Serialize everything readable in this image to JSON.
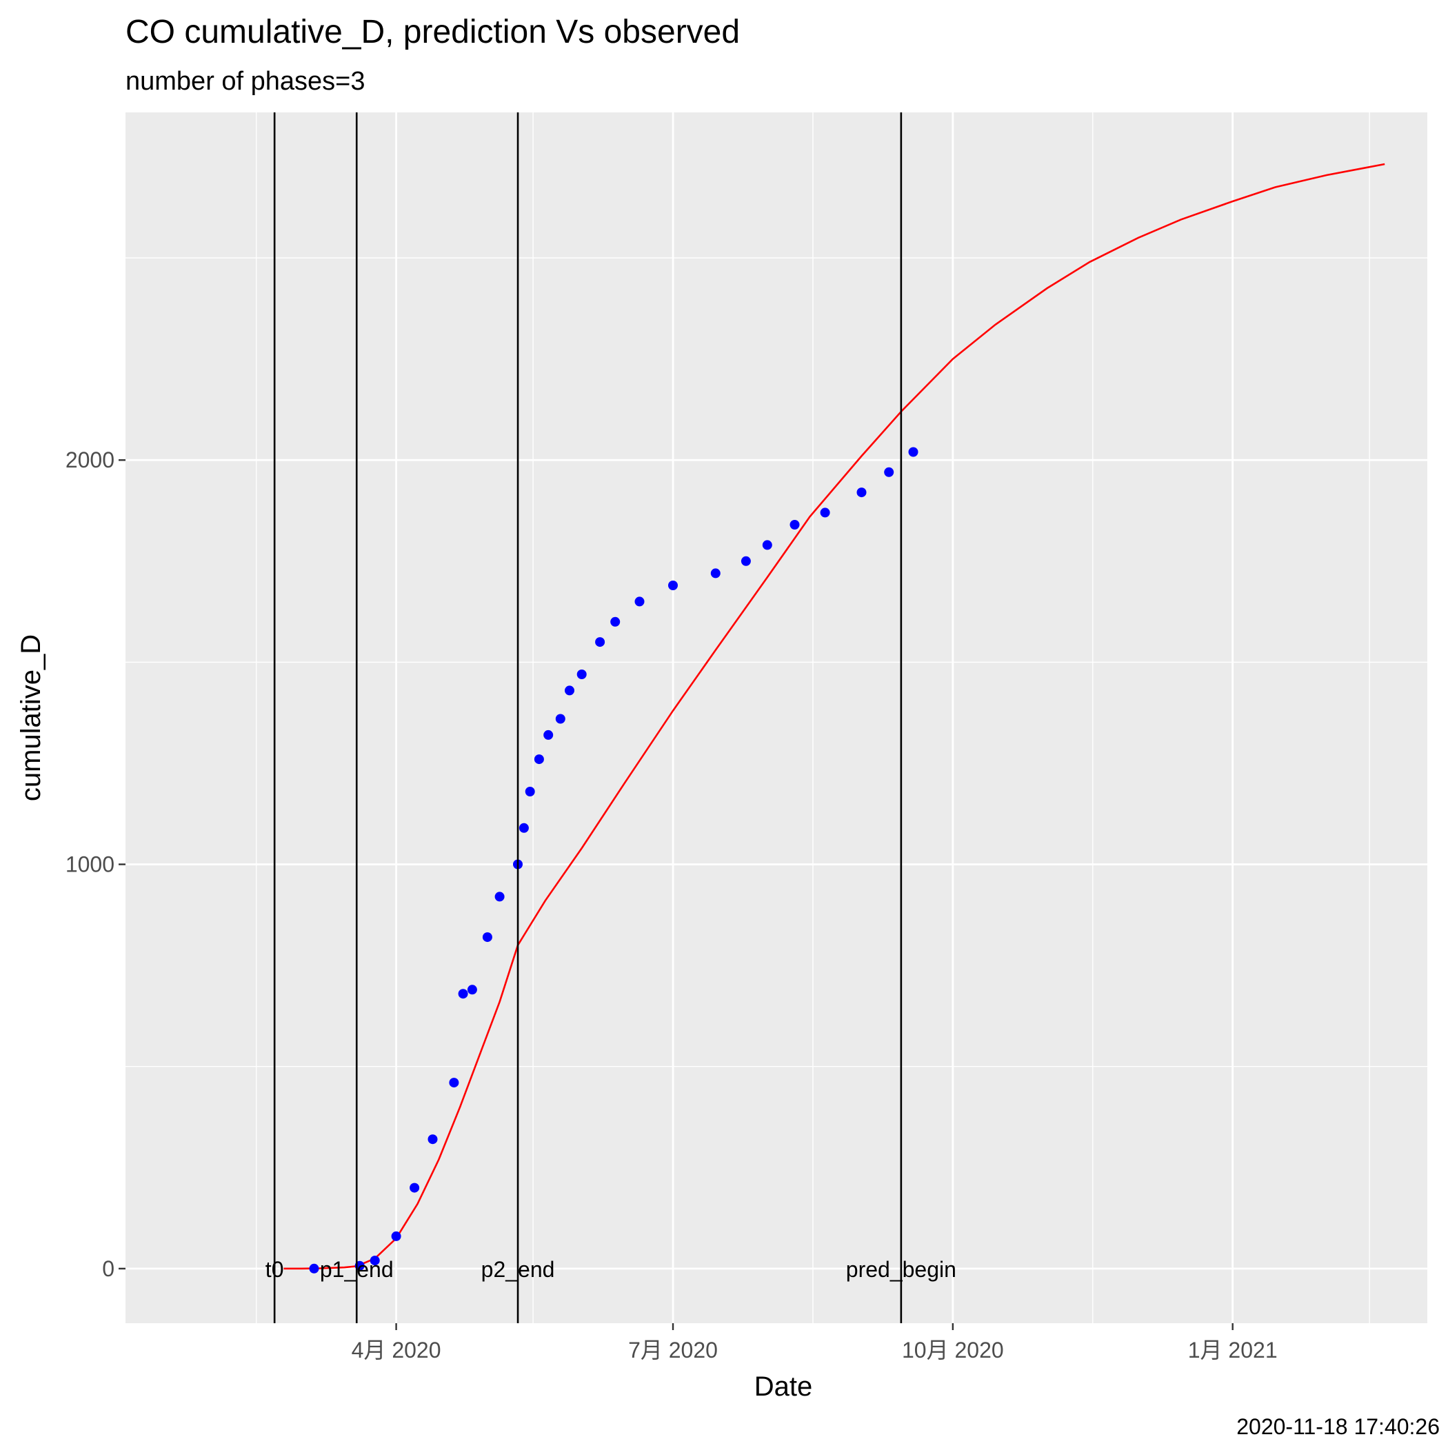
{
  "chart_data": {
    "type": "line",
    "title": "CO cumulative_D,  prediction Vs observed",
    "subtitle": "number of phases=3",
    "xlabel": "Date",
    "ylabel": "cumulative_D",
    "caption": "2020-11-18 17:40:26",
    "xlim": [
      "2020-01-03",
      "2021-03-06"
    ],
    "ylim": [
      -135,
      2860
    ],
    "grid": true,
    "x_ticks": [
      {
        "date": "2020-04-01",
        "label": "4月 2020"
      },
      {
        "date": "2020-07-01",
        "label": "7月 2020"
      },
      {
        "date": "2020-10-01",
        "label": "10月 2020"
      },
      {
        "date": "2021-01-01",
        "label": "1月 2021"
      }
    ],
    "x_minor_ticks": [
      "2020-02-15",
      "2020-05-16",
      "2020-08-16",
      "2020-11-16",
      "2021-02-15"
    ],
    "y_ticks": [
      0,
      1000,
      2000
    ],
    "y_minor_ticks": [
      500,
      1500,
      2500
    ],
    "vlines": [
      {
        "date": "2020-02-21",
        "label": "t0"
      },
      {
        "date": "2020-03-19",
        "label": "p1_end"
      },
      {
        "date": "2020-05-11",
        "label": "p2_end"
      },
      {
        "date": "2020-09-14",
        "label": "pred_begin"
      }
    ],
    "series": [
      {
        "kind": "prediction-line",
        "color": "#ff0000",
        "points": [
          [
            "2020-02-24",
            0
          ],
          [
            "2020-03-01",
            0
          ],
          [
            "2020-03-08",
            1
          ],
          [
            "2020-03-15",
            3
          ],
          [
            "2020-03-19",
            6
          ],
          [
            "2020-03-25",
            25
          ],
          [
            "2020-04-01",
            75
          ],
          [
            "2020-04-08",
            160
          ],
          [
            "2020-04-15",
            270
          ],
          [
            "2020-04-22",
            400
          ],
          [
            "2020-04-29",
            540
          ],
          [
            "2020-05-05",
            660
          ],
          [
            "2020-05-11",
            800
          ],
          [
            "2020-05-20",
            910
          ],
          [
            "2020-06-01",
            1040
          ],
          [
            "2020-06-15",
            1200
          ],
          [
            "2020-07-01",
            1380
          ],
          [
            "2020-07-15",
            1530
          ],
          [
            "2020-08-01",
            1710
          ],
          [
            "2020-08-15",
            1860
          ],
          [
            "2020-09-01",
            2010
          ],
          [
            "2020-09-14",
            2120
          ],
          [
            "2020-10-01",
            2250
          ],
          [
            "2020-10-15",
            2335
          ],
          [
            "2020-11-01",
            2425
          ],
          [
            "2020-11-15",
            2490
          ],
          [
            "2020-12-01",
            2550
          ],
          [
            "2020-12-15",
            2595
          ],
          [
            "2021-01-01",
            2640
          ],
          [
            "2021-01-15",
            2675
          ],
          [
            "2021-02-01",
            2705
          ],
          [
            "2021-02-15",
            2725
          ],
          [
            "2021-02-20",
            2732
          ]
        ]
      },
      {
        "kind": "observed-points",
        "color": "#0000ff",
        "points": [
          [
            "2020-03-05",
            0
          ],
          [
            "2020-03-20",
            7
          ],
          [
            "2020-03-25",
            20
          ],
          [
            "2020-04-01",
            80
          ],
          [
            "2020-04-07",
            200
          ],
          [
            "2020-04-13",
            320
          ],
          [
            "2020-04-20",
            460
          ],
          [
            "2020-04-23",
            680
          ],
          [
            "2020-04-26",
            690
          ],
          [
            "2020-05-01",
            820
          ],
          [
            "2020-05-05",
            920
          ],
          [
            "2020-05-11",
            1000
          ],
          [
            "2020-05-13",
            1090
          ],
          [
            "2020-05-15",
            1180
          ],
          [
            "2020-05-18",
            1260
          ],
          [
            "2020-05-21",
            1320
          ],
          [
            "2020-05-25",
            1360
          ],
          [
            "2020-05-28",
            1430
          ],
          [
            "2020-06-01",
            1470
          ],
          [
            "2020-06-07",
            1550
          ],
          [
            "2020-06-12",
            1600
          ],
          [
            "2020-06-20",
            1650
          ],
          [
            "2020-07-01",
            1690
          ],
          [
            "2020-07-15",
            1720
          ],
          [
            "2020-07-25",
            1750
          ],
          [
            "2020-08-01",
            1790
          ],
          [
            "2020-08-10",
            1840
          ],
          [
            "2020-08-20",
            1870
          ],
          [
            "2020-09-01",
            1920
          ],
          [
            "2020-09-10",
            1970
          ],
          [
            "2020-09-18",
            2020
          ]
        ]
      }
    ]
  }
}
